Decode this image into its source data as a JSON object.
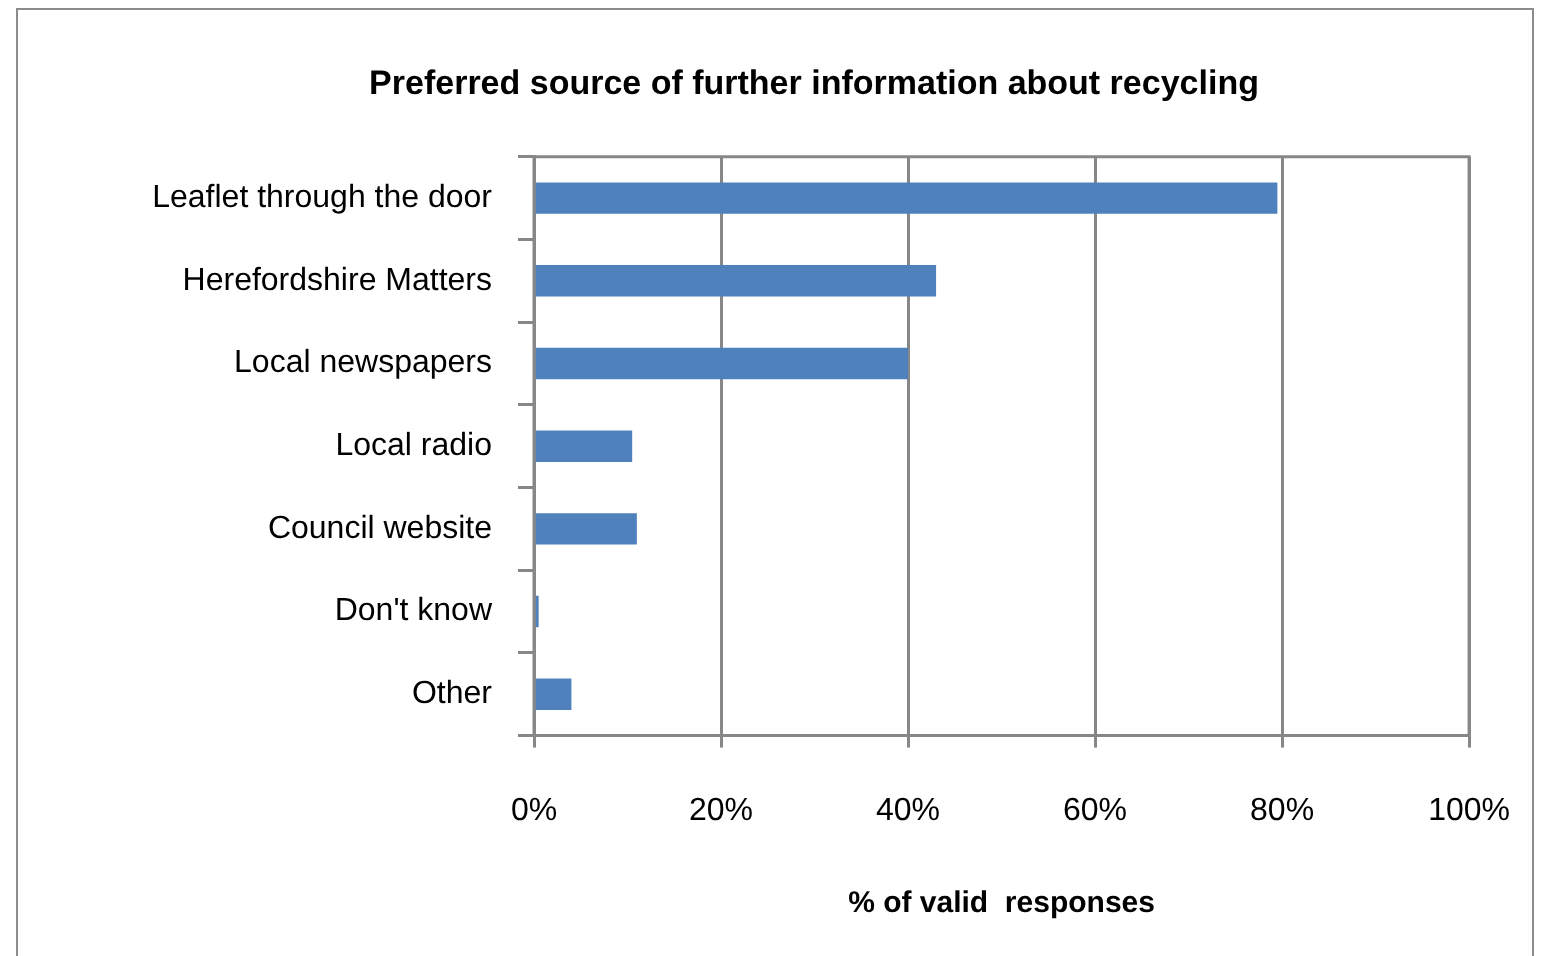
{
  "chart_data": {
    "type": "bar",
    "orientation": "horizontal",
    "title": "Preferred source of further information about recycling",
    "xlabel": "% of valid  responses",
    "categories": [
      "Leaflet through the door",
      "Herefordshire Matters",
      "Local newspapers",
      "Local radio",
      "Council website",
      "Don't know",
      "Other"
    ],
    "values": [
      79.5,
      43,
      40,
      10.5,
      11,
      0.5,
      4
    ],
    "color": "#4f81bd",
    "xlim": [
      0,
      100
    ],
    "xticks": [
      {
        "value": 0,
        "label": "0%"
      },
      {
        "value": 20,
        "label": "20%"
      },
      {
        "value": 40,
        "label": "40%"
      },
      {
        "value": 60,
        "label": "60%"
      },
      {
        "value": 80,
        "label": "80%"
      },
      {
        "value": 100,
        "label": "100%"
      }
    ],
    "grid": "x"
  }
}
